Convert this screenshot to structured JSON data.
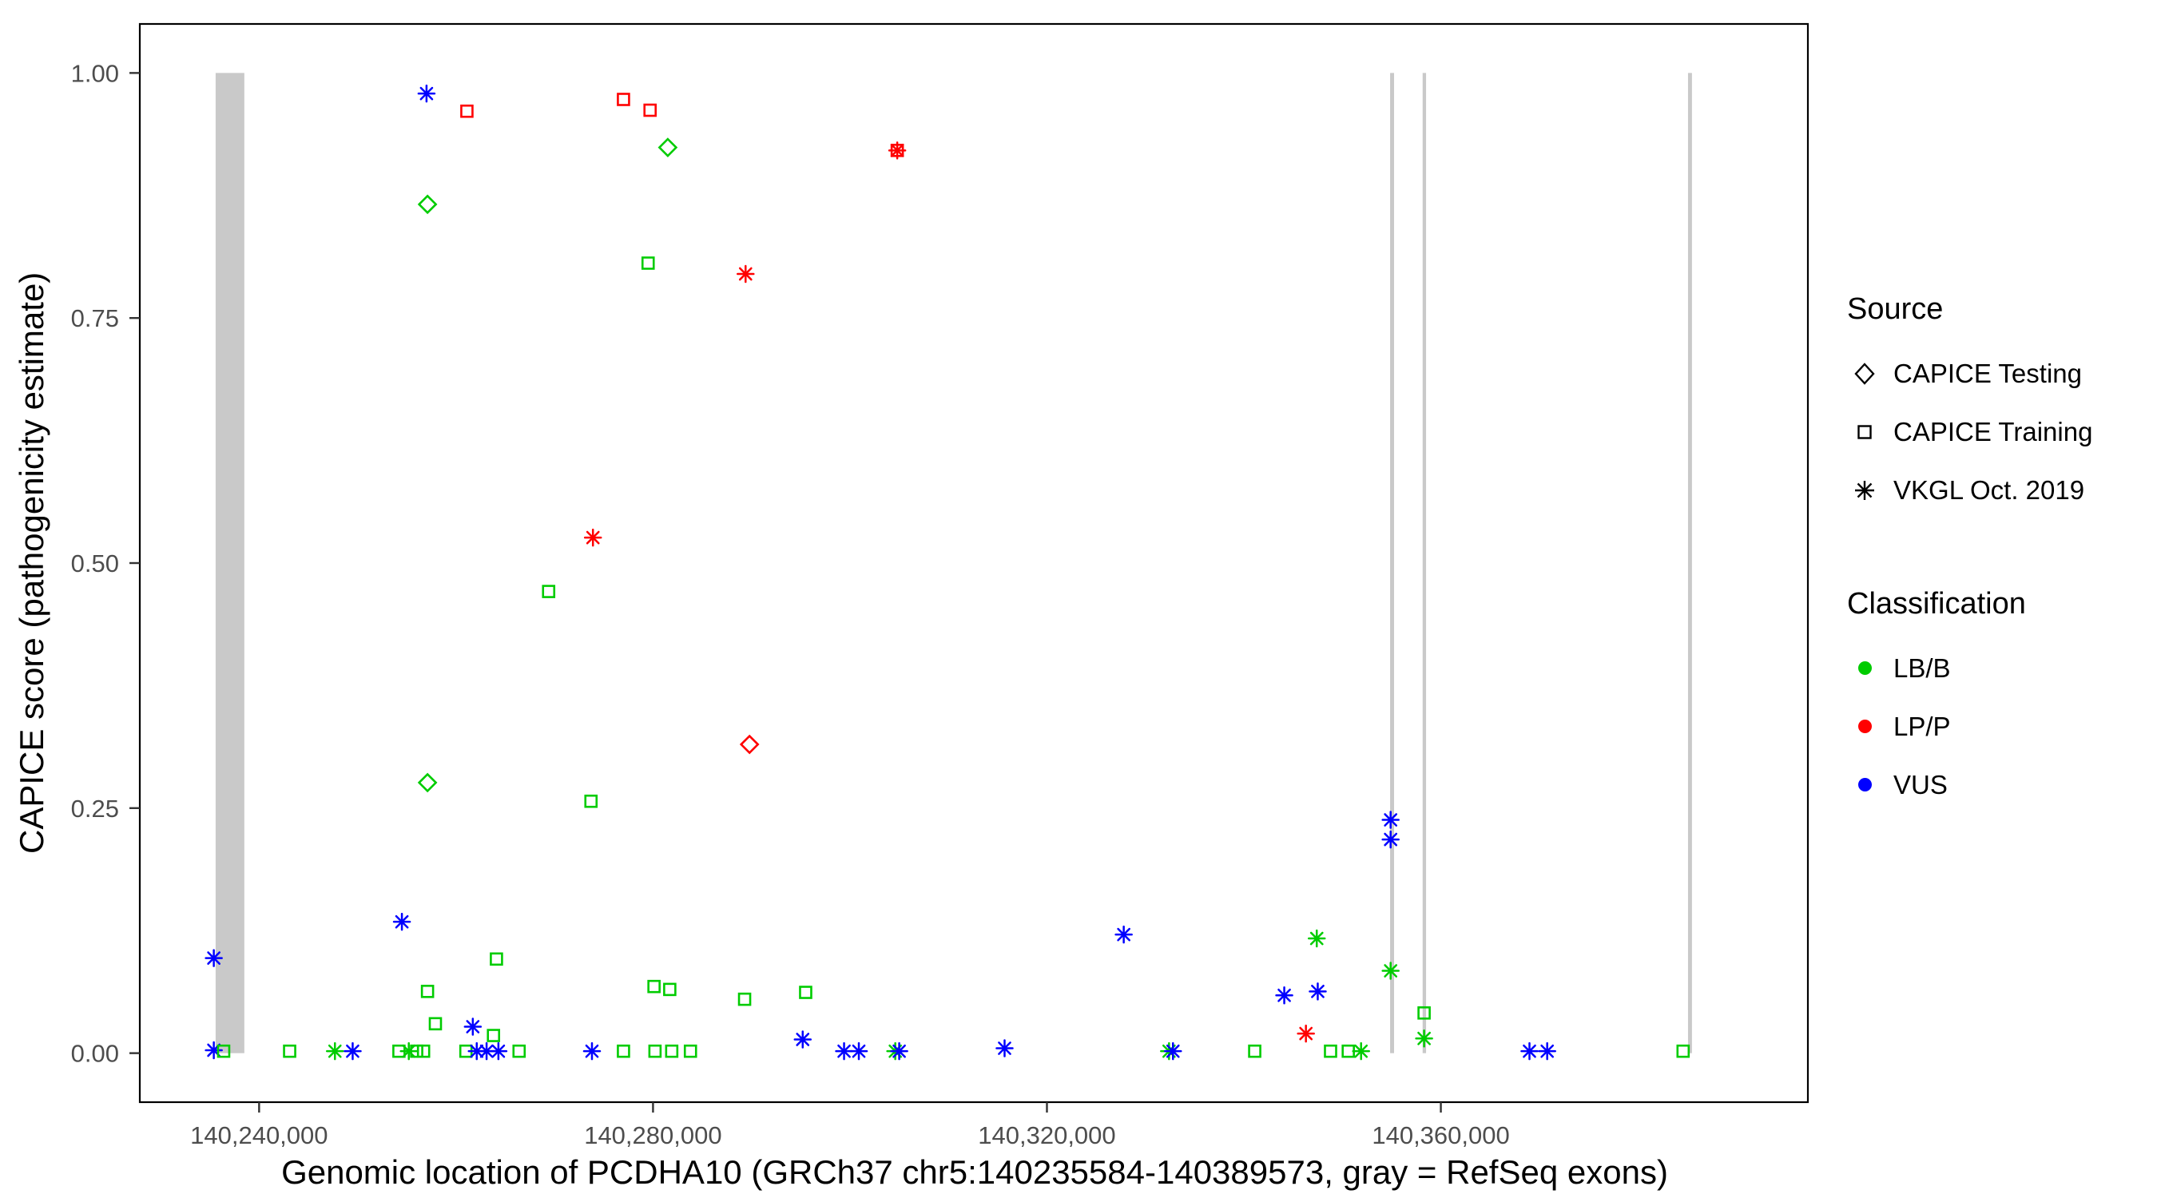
{
  "chart_data": {
    "type": "scatter",
    "xlabel": "Genomic location of PCDHA10 (GRCh37 chr5:140235584-140389573, gray = RefSeq exons)",
    "ylabel": "CAPICE score (pathogenicity estimate)",
    "x_domain": [
      140227885,
      140397272
    ],
    "y_domain": [
      -0.05,
      1.05
    ],
    "grid": "off",
    "legend_position": "right",
    "x_ticks": [
      {
        "value": 140240000,
        "label": "140,240,000"
      },
      {
        "value": 140280000,
        "label": "140,280,000"
      },
      {
        "value": 140320000,
        "label": "140,320,000"
      },
      {
        "value": 140360000,
        "label": "140,360,000"
      }
    ],
    "y_ticks": [
      {
        "value": 0.0,
        "label": "0.00"
      },
      {
        "value": 0.25,
        "label": "0.25"
      },
      {
        "value": 0.5,
        "label": "0.50"
      },
      {
        "value": 0.75,
        "label": "0.75"
      },
      {
        "value": 1.0,
        "label": "1.00"
      }
    ],
    "exon_color": "#c9c9c9",
    "exons": [
      {
        "start": 140235584,
        "end": 140238500
      },
      {
        "start": 140354850,
        "end": 140355250
      },
      {
        "start": 140358150,
        "end": 140358500
      },
      {
        "start": 140385100,
        "end": 140385500
      }
    ],
    "class_colors": {
      "LB/B": "#00cc00",
      "LP/P": "#ff0000",
      "VUS": "#0000ff"
    },
    "source_shapes": {
      "CAPICE Testing": "diamond",
      "CAPICE Training": "square",
      "VKGL Oct. 2019": "asterisk"
    },
    "points": [
      {
        "x": 140257000,
        "y": 0.979,
        "source": "VKGL Oct. 2019",
        "class": "VUS"
      },
      {
        "x": 140261100,
        "y": 0.961,
        "source": "CAPICE Training",
        "class": "LP/P"
      },
      {
        "x": 140277000,
        "y": 0.973,
        "source": "CAPICE Training",
        "class": "LP/P"
      },
      {
        "x": 140279700,
        "y": 0.962,
        "source": "CAPICE Training",
        "class": "LP/P"
      },
      {
        "x": 140281500,
        "y": 0.924,
        "source": "CAPICE Testing",
        "class": "LB/B"
      },
      {
        "x": 140304800,
        "y": 0.921,
        "source": "CAPICE Training",
        "class": "LP/P"
      },
      {
        "x": 140304800,
        "y": 0.921,
        "source": "VKGL Oct. 2019",
        "class": "LP/P"
      },
      {
        "x": 140257100,
        "y": 0.866,
        "source": "CAPICE Testing",
        "class": "LB/B"
      },
      {
        "x": 140279500,
        "y": 0.806,
        "source": "CAPICE Training",
        "class": "LB/B"
      },
      {
        "x": 140289400,
        "y": 0.795,
        "source": "VKGL Oct. 2019",
        "class": "LP/P"
      },
      {
        "x": 140273900,
        "y": 0.526,
        "source": "VKGL Oct. 2019",
        "class": "LP/P"
      },
      {
        "x": 140269400,
        "y": 0.471,
        "source": "CAPICE Training",
        "class": "LB/B"
      },
      {
        "x": 140289800,
        "y": 0.315,
        "source": "CAPICE Testing",
        "class": "LP/P"
      },
      {
        "x": 140257100,
        "y": 0.276,
        "source": "CAPICE Testing",
        "class": "LB/B"
      },
      {
        "x": 140273700,
        "y": 0.257,
        "source": "CAPICE Training",
        "class": "LB/B"
      },
      {
        "x": 140354900,
        "y": 0.238,
        "source": "VKGL Oct. 2019",
        "class": "VUS"
      },
      {
        "x": 140354900,
        "y": 0.218,
        "source": "VKGL Oct. 2019",
        "class": "VUS"
      },
      {
        "x": 140254500,
        "y": 0.134,
        "source": "VKGL Oct. 2019",
        "class": "VUS"
      },
      {
        "x": 140327800,
        "y": 0.121,
        "source": "VKGL Oct. 2019",
        "class": "VUS"
      },
      {
        "x": 140347400,
        "y": 0.117,
        "source": "VKGL Oct. 2019",
        "class": "LB/B"
      },
      {
        "x": 140354900,
        "y": 0.084,
        "source": "VKGL Oct. 2019",
        "class": "LB/B"
      },
      {
        "x": 140235400,
        "y": 0.097,
        "source": "VKGL Oct. 2019",
        "class": "VUS"
      },
      {
        "x": 140264100,
        "y": 0.096,
        "source": "CAPICE Training",
        "class": "LB/B"
      },
      {
        "x": 140257100,
        "y": 0.063,
        "source": "CAPICE Training",
        "class": "LB/B"
      },
      {
        "x": 140280100,
        "y": 0.068,
        "source": "CAPICE Training",
        "class": "LB/B"
      },
      {
        "x": 140281700,
        "y": 0.065,
        "source": "CAPICE Training",
        "class": "LB/B"
      },
      {
        "x": 140344100,
        "y": 0.059,
        "source": "VKGL Oct. 2019",
        "class": "VUS"
      },
      {
        "x": 140347500,
        "y": 0.063,
        "source": "VKGL Oct. 2019",
        "class": "VUS"
      },
      {
        "x": 140289300,
        "y": 0.055,
        "source": "CAPICE Training",
        "class": "LB/B"
      },
      {
        "x": 140295500,
        "y": 0.062,
        "source": "CAPICE Training",
        "class": "LB/B"
      },
      {
        "x": 140257900,
        "y": 0.03,
        "source": "CAPICE Training",
        "class": "LB/B"
      },
      {
        "x": 140261700,
        "y": 0.027,
        "source": "VKGL Oct. 2019",
        "class": "VUS"
      },
      {
        "x": 140263800,
        "y": 0.018,
        "source": "CAPICE Training",
        "class": "LB/B"
      },
      {
        "x": 140346300,
        "y": 0.02,
        "source": "VKGL Oct. 2019",
        "class": "LP/P"
      },
      {
        "x": 140358300,
        "y": 0.041,
        "source": "CAPICE Training",
        "class": "LB/B"
      },
      {
        "x": 140358300,
        "y": 0.015,
        "source": "VKGL Oct. 2019",
        "class": "LB/B"
      },
      {
        "x": 140295200,
        "y": 0.014,
        "source": "VKGL Oct. 2019",
        "class": "VUS"
      },
      {
        "x": 140235400,
        "y": 0.003,
        "source": "VKGL Oct. 2019",
        "class": "VUS"
      },
      {
        "x": 140236400,
        "y": 0.002,
        "source": "CAPICE Training",
        "class": "LB/B"
      },
      {
        "x": 140243100,
        "y": 0.002,
        "source": "CAPICE Training",
        "class": "LB/B"
      },
      {
        "x": 140247700,
        "y": 0.002,
        "source": "VKGL Oct. 2019",
        "class": "LB/B"
      },
      {
        "x": 140249500,
        "y": 0.002,
        "source": "VKGL Oct. 2019",
        "class": "VUS"
      },
      {
        "x": 140254200,
        "y": 0.002,
        "source": "CAPICE Training",
        "class": "LB/B"
      },
      {
        "x": 140255200,
        "y": 0.002,
        "source": "VKGL Oct. 2019",
        "class": "LB/B"
      },
      {
        "x": 140256000,
        "y": 0.002,
        "source": "CAPICE Training",
        "class": "LB/B"
      },
      {
        "x": 140256700,
        "y": 0.002,
        "source": "CAPICE Training",
        "class": "LB/B"
      },
      {
        "x": 140261000,
        "y": 0.002,
        "source": "CAPICE Training",
        "class": "LB/B"
      },
      {
        "x": 140262100,
        "y": 0.002,
        "source": "VKGL Oct. 2019",
        "class": "VUS"
      },
      {
        "x": 140263100,
        "y": 0.002,
        "source": "VKGL Oct. 2019",
        "class": "VUS"
      },
      {
        "x": 140264300,
        "y": 0.002,
        "source": "VKGL Oct. 2019",
        "class": "VUS"
      },
      {
        "x": 140266400,
        "y": 0.002,
        "source": "CAPICE Training",
        "class": "LB/B"
      },
      {
        "x": 140273800,
        "y": 0.002,
        "source": "VKGL Oct. 2019",
        "class": "VUS"
      },
      {
        "x": 140277000,
        "y": 0.002,
        "source": "CAPICE Training",
        "class": "LB/B"
      },
      {
        "x": 140280200,
        "y": 0.002,
        "source": "CAPICE Training",
        "class": "LB/B"
      },
      {
        "x": 140281900,
        "y": 0.002,
        "source": "CAPICE Training",
        "class": "LB/B"
      },
      {
        "x": 140283800,
        "y": 0.002,
        "source": "CAPICE Training",
        "class": "LB/B"
      },
      {
        "x": 140299400,
        "y": 0.002,
        "source": "VKGL Oct. 2019",
        "class": "VUS"
      },
      {
        "x": 140300900,
        "y": 0.002,
        "source": "VKGL Oct. 2019",
        "class": "VUS"
      },
      {
        "x": 140304600,
        "y": 0.002,
        "source": "VKGL Oct. 2019",
        "class": "LB/B"
      },
      {
        "x": 140305000,
        "y": 0.002,
        "source": "VKGL Oct. 2019",
        "class": "VUS"
      },
      {
        "x": 140315700,
        "y": 0.005,
        "source": "VKGL Oct. 2019",
        "class": "VUS"
      },
      {
        "x": 140332400,
        "y": 0.002,
        "source": "VKGL Oct. 2019",
        "class": "LB/B"
      },
      {
        "x": 140332800,
        "y": 0.002,
        "source": "VKGL Oct. 2019",
        "class": "VUS"
      },
      {
        "x": 140341100,
        "y": 0.002,
        "source": "CAPICE Training",
        "class": "LB/B"
      },
      {
        "x": 140348800,
        "y": 0.002,
        "source": "CAPICE Training",
        "class": "LB/B"
      },
      {
        "x": 140350600,
        "y": 0.002,
        "source": "CAPICE Training",
        "class": "LB/B"
      },
      {
        "x": 140351900,
        "y": 0.002,
        "source": "VKGL Oct. 2019",
        "class": "LB/B"
      },
      {
        "x": 140369000,
        "y": 0.002,
        "source": "VKGL Oct. 2019",
        "class": "VUS"
      },
      {
        "x": 140370800,
        "y": 0.002,
        "source": "VKGL Oct. 2019",
        "class": "VUS"
      },
      {
        "x": 140384600,
        "y": 0.002,
        "source": "CAPICE Training",
        "class": "LB/B"
      }
    ]
  },
  "legend": {
    "source_title": "Source",
    "source_items": [
      {
        "label": "CAPICE Testing",
        "shape": "diamond"
      },
      {
        "label": "CAPICE Training",
        "shape": "square"
      },
      {
        "label": "VKGL Oct. 2019",
        "shape": "asterisk"
      }
    ],
    "classification_title": "Classification",
    "classification_items": [
      {
        "label": "LB/B",
        "color": "#00cc00"
      },
      {
        "label": "LP/P",
        "color": "#ff0000"
      },
      {
        "label": "VUS",
        "color": "#0000ff"
      }
    ]
  }
}
